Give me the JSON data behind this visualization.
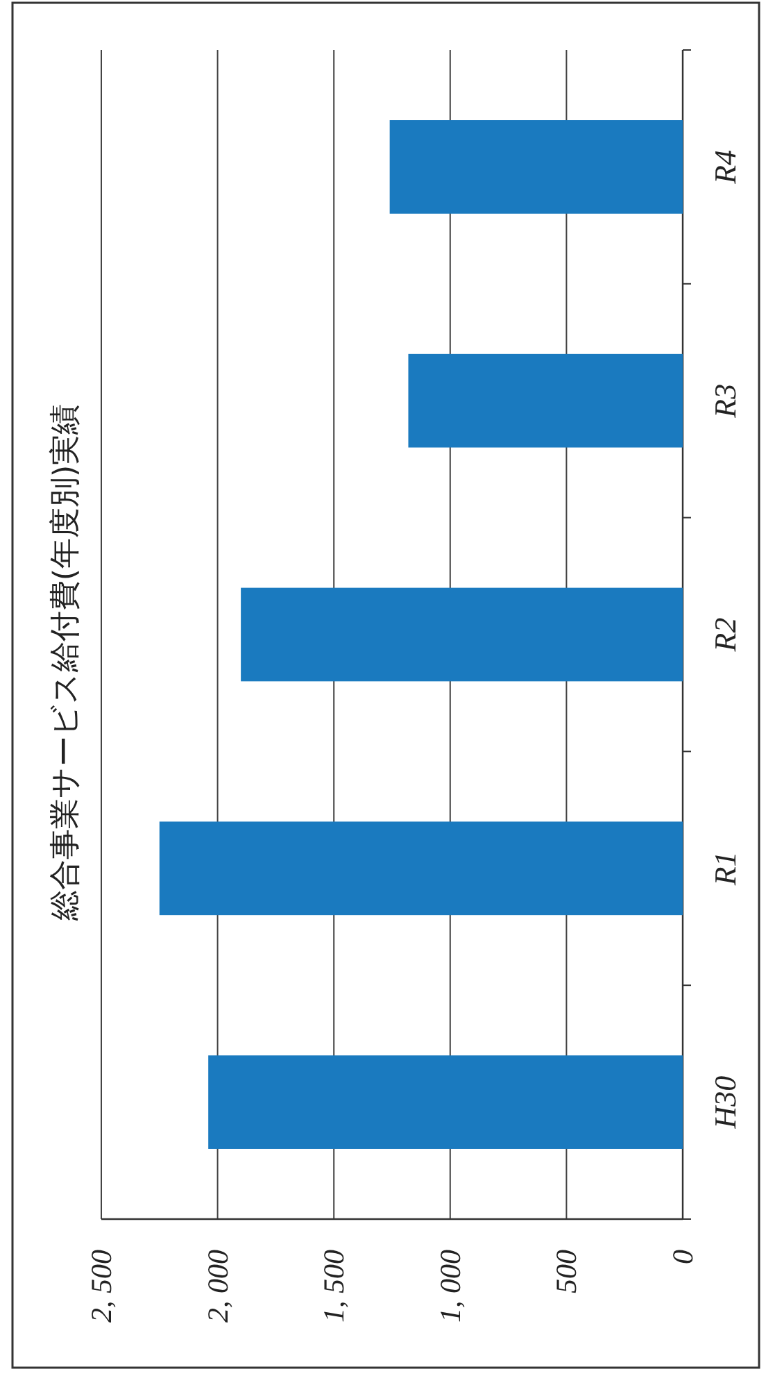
{
  "chart_data": {
    "type": "bar",
    "orientation": "horizontal",
    "title": "総合事業サービス給付費(年度別)実績",
    "categories": [
      "R4",
      "R3",
      "R2",
      "R1",
      "H30"
    ],
    "values": [
      1260,
      1180,
      1900,
      2250,
      2040
    ],
    "color": "#1a7abf",
    "xlim": [
      2500,
      0
    ],
    "xticks": [
      {
        "value": 2500,
        "label": "2, 500"
      },
      {
        "value": 2000,
        "label": "2, 000"
      },
      {
        "value": 1500,
        "label": "1, 500"
      },
      {
        "value": 1000,
        "label": "1, 000"
      },
      500,
      0
    ],
    "grid": "x"
  }
}
